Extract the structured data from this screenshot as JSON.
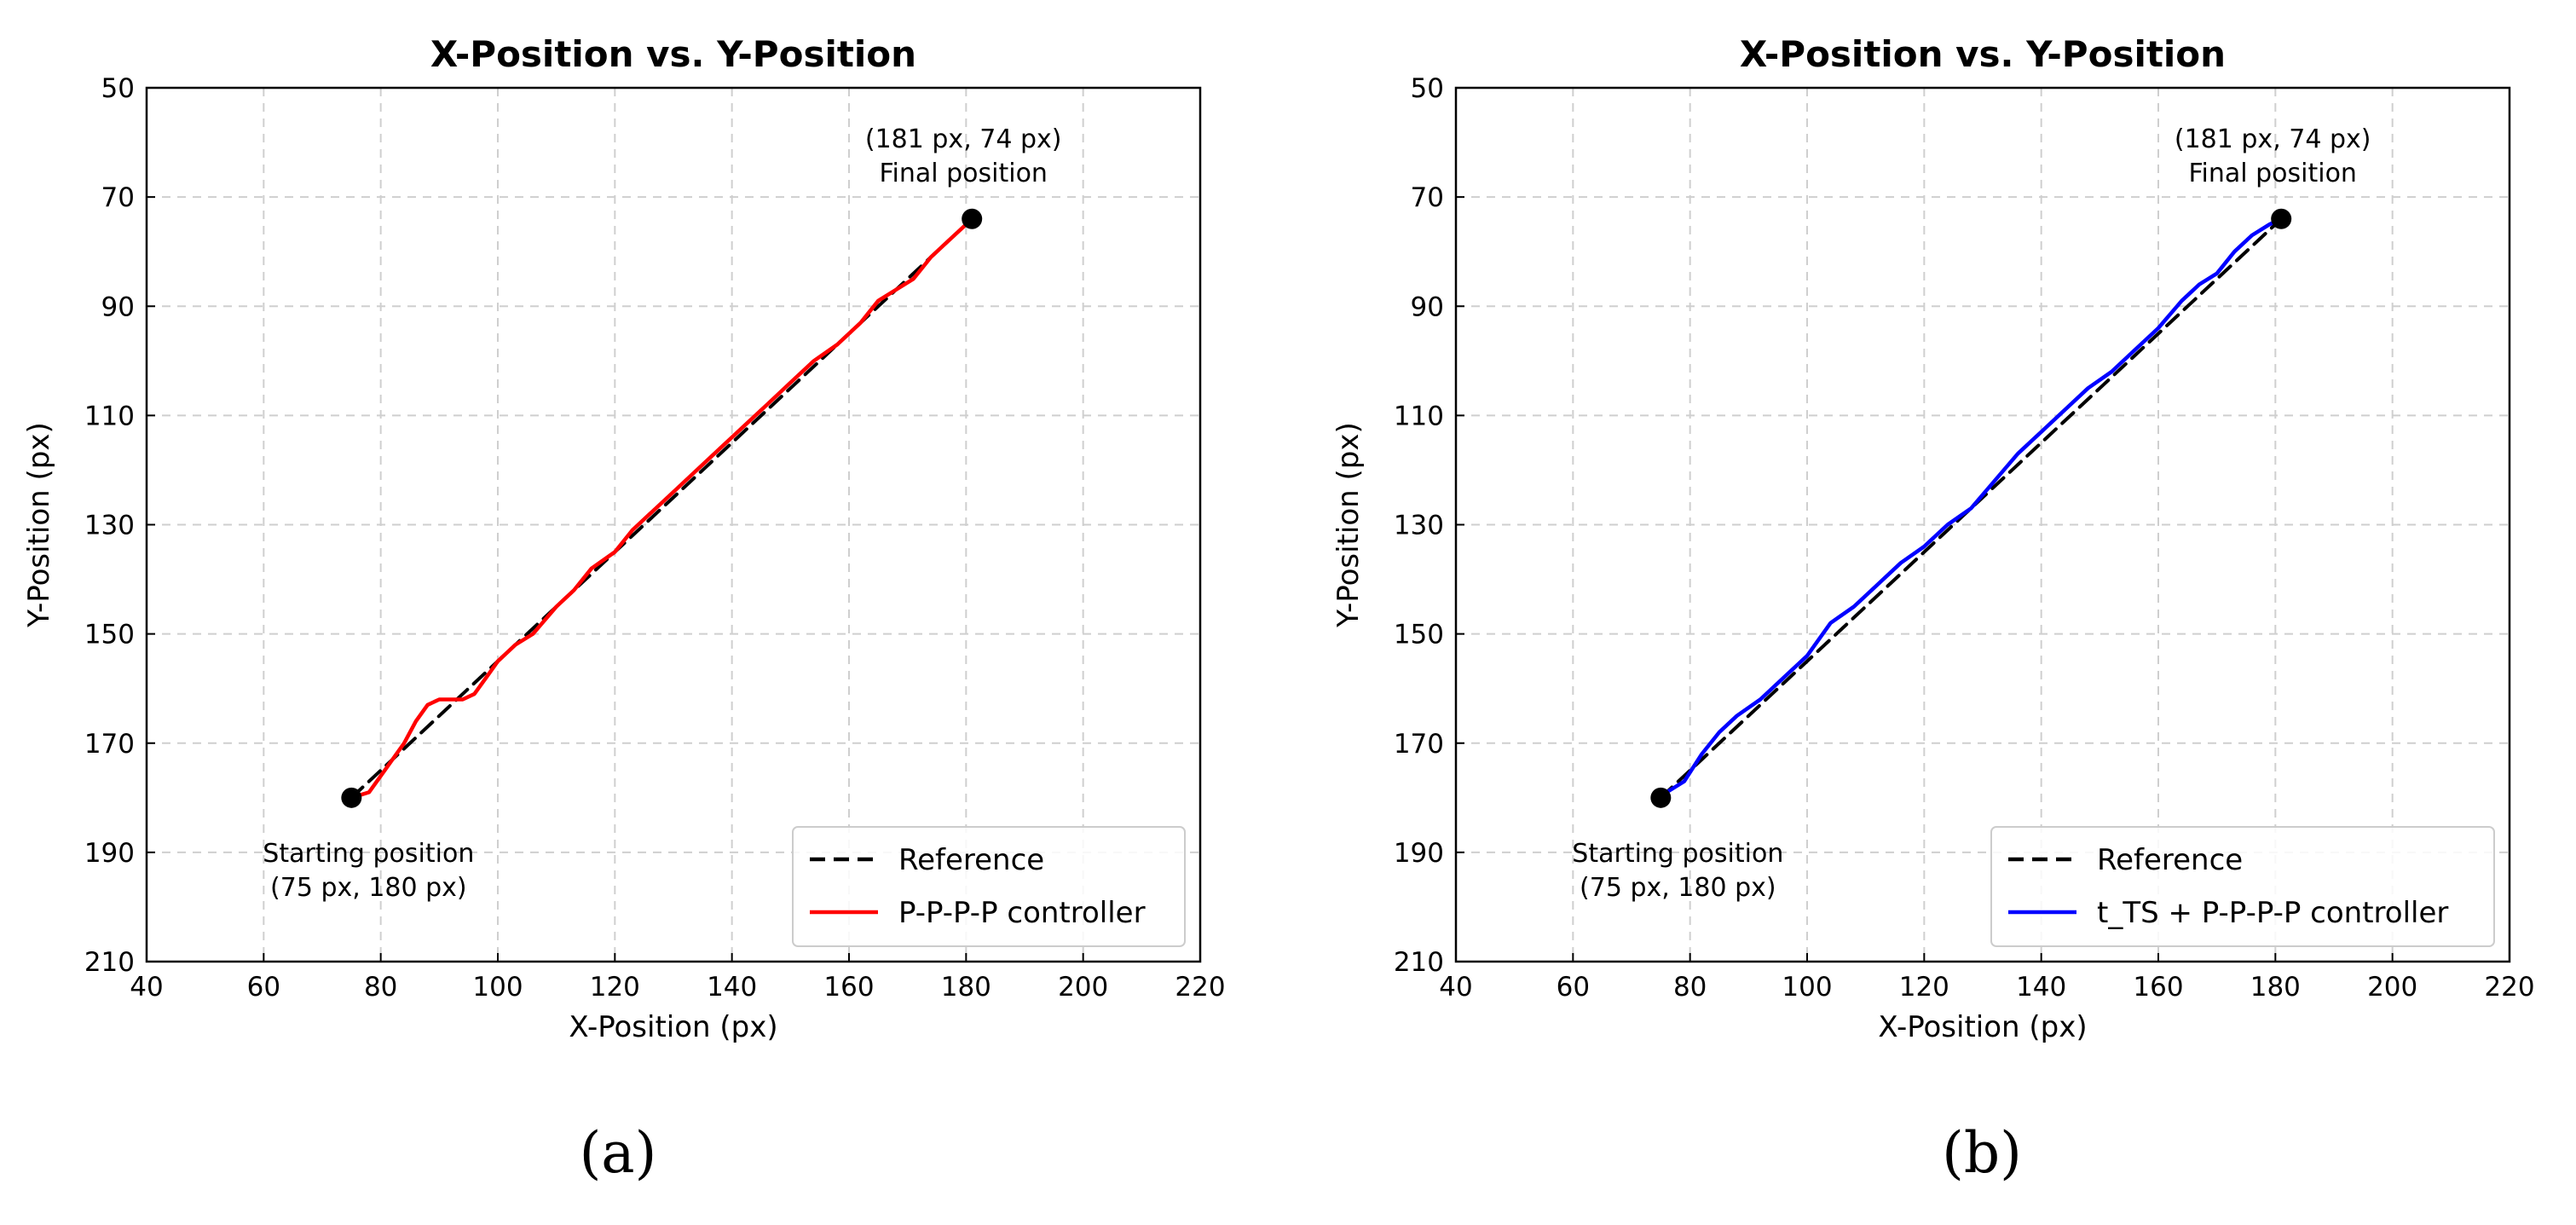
{
  "chart_data": [
    {
      "type": "line",
      "panel_label": "(a)",
      "title": "X-Position vs. Y-Position",
      "xlabel": "X-Position (px)",
      "ylabel": "Y-Position (px)",
      "xlim": [
        40,
        220
      ],
      "ylim": [
        210,
        50
      ],
      "y_inverted": true,
      "xticks": [
        40,
        60,
        80,
        100,
        120,
        140,
        160,
        180,
        200,
        220
      ],
      "yticks": [
        50,
        70,
        90,
        110,
        130,
        150,
        170,
        190,
        210
      ],
      "grid": true,
      "legend_position": "bottom-right",
      "series": [
        {
          "name": "Reference",
          "style": "dashed",
          "color": "#000000",
          "x": [
            75,
            181
          ],
          "y": [
            180,
            74
          ]
        },
        {
          "name": "P-P-P-P controller",
          "style": "solid",
          "color": "#ff0000",
          "x": [
            75,
            78,
            80,
            82,
            84,
            86,
            88,
            90,
            92,
            94,
            96,
            98,
            100,
            103,
            106,
            110,
            113,
            116,
            120,
            123,
            126,
            130,
            134,
            138,
            142,
            146,
            150,
            154,
            158,
            162,
            165,
            168,
            171,
            174,
            177,
            179,
            181
          ],
          "y": [
            180,
            179,
            176,
            173,
            170,
            166,
            163,
            162,
            162,
            162,
            161,
            158,
            155,
            152,
            150,
            145,
            142,
            138,
            135,
            131,
            128,
            124,
            120,
            116,
            112,
            108,
            104,
            100,
            97,
            93,
            89,
            87,
            85,
            81,
            78,
            76,
            74
          ]
        }
      ],
      "annotations": [
        {
          "lines": [
            "Starting position",
            "(75 px, 180 px)"
          ],
          "x": 75,
          "y": 180,
          "kind": "start"
        },
        {
          "lines": [
            "(181 px, 74 px)",
            "Final position"
          ],
          "x": 181,
          "y": 74,
          "kind": "end"
        }
      ]
    },
    {
      "type": "line",
      "panel_label": "(b)",
      "title": "X-Position vs. Y-Position",
      "xlabel": "X-Position (px)",
      "ylabel": "Y-Position (px)",
      "xlim": [
        40,
        220
      ],
      "ylim": [
        210,
        50
      ],
      "y_inverted": true,
      "xticks": [
        40,
        60,
        80,
        100,
        120,
        140,
        160,
        180,
        200,
        220
      ],
      "yticks": [
        50,
        70,
        90,
        110,
        130,
        150,
        170,
        190,
        210
      ],
      "grid": true,
      "legend_position": "bottom-right",
      "series": [
        {
          "name": "Reference",
          "style": "dashed",
          "color": "#000000",
          "x": [
            75,
            181
          ],
          "y": [
            180,
            74
          ]
        },
        {
          "name": "t_TS + P-P-P-P controller",
          "style": "solid",
          "color": "#0000ff",
          "x": [
            76,
            79,
            82,
            85,
            88,
            92,
            96,
            100,
            104,
            108,
            112,
            116,
            120,
            124,
            128,
            132,
            136,
            140,
            144,
            148,
            152,
            156,
            160,
            164,
            167,
            170,
            173,
            176,
            179,
            181
          ],
          "y": [
            179,
            177,
            172,
            168,
            165,
            162,
            158,
            154,
            148,
            145,
            141,
            137,
            134,
            130,
            127,
            122,
            117,
            113,
            109,
            105,
            102,
            98,
            94,
            89,
            86,
            84,
            80,
            77,
            75,
            74
          ]
        }
      ],
      "annotations": [
        {
          "lines": [
            "Starting position",
            "(75 px, 180 px)"
          ],
          "x": 75,
          "y": 180,
          "kind": "start"
        },
        {
          "lines": [
            "(181 px, 74 px)",
            "Final position"
          ],
          "x": 181,
          "y": 74,
          "kind": "end"
        }
      ]
    }
  ]
}
